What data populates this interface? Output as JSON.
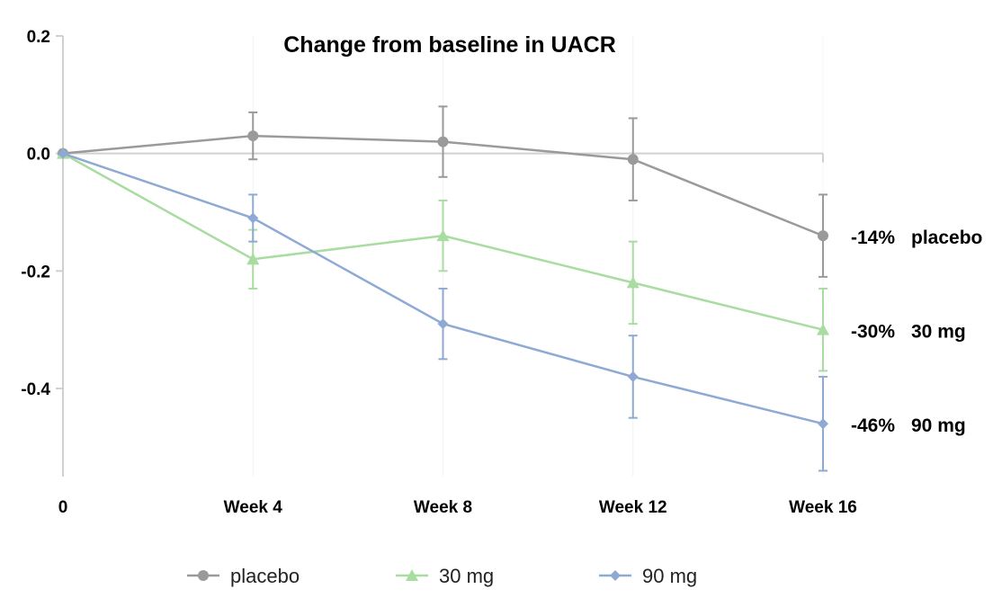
{
  "chart_data": {
    "type": "line",
    "title": "Change from baseline in UACR",
    "xlabel": "",
    "ylabel": "",
    "categories": [
      "0",
      "Week 4",
      "Week 8",
      "Week 12",
      "Week 16"
    ],
    "ylim": [
      -0.55,
      0.2
    ],
    "yticks": [
      0.2,
      0.0,
      -0.2,
      -0.4
    ],
    "ytick_labels": [
      "0.2",
      "0.0",
      "-0.2",
      "-0.4"
    ],
    "reference_line": 0,
    "grid": false,
    "legend_position": "bottom",
    "series": [
      {
        "name": "placebo",
        "color": "#9a9a9a",
        "marker": "circle",
        "values": [
          0.0,
          0.03,
          0.02,
          -0.01,
          -0.14
        ],
        "error": [
          0.0,
          0.04,
          0.06,
          0.07,
          0.07
        ],
        "end_percent": "-14%",
        "end_name": "placebo"
      },
      {
        "name": "30 mg",
        "color": "#a8dca0",
        "marker": "triangle",
        "values": [
          0.0,
          -0.18,
          -0.14,
          -0.22,
          -0.3
        ],
        "error": [
          0.0,
          0.05,
          0.06,
          0.07,
          0.07
        ],
        "end_percent": "-30%",
        "end_name": "30 mg"
      },
      {
        "name": "90 mg",
        "color": "#8eaad4",
        "marker": "diamond",
        "values": [
          0.0,
          -0.11,
          -0.29,
          -0.38,
          -0.46
        ],
        "error": [
          0.0,
          0.04,
          0.06,
          0.07,
          0.08
        ],
        "end_percent": "-46%",
        "end_name": "90 mg"
      }
    ]
  }
}
